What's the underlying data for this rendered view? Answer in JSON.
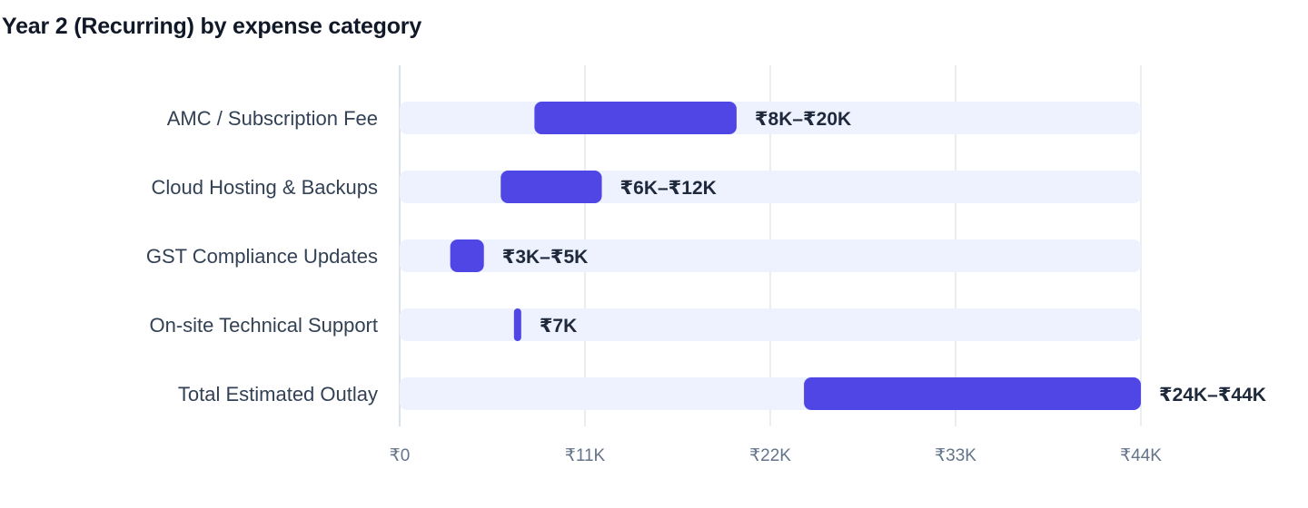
{
  "chart_data": {
    "type": "bar",
    "title": "Year 2 (Recurring) by expense category",
    "xlabel": "",
    "ylabel": "",
    "orientation": "horizontal",
    "bar_style": "floating range",
    "categories": [
      "AMC / Subscription Fee",
      "Cloud Hosting & Backups",
      "GST Compliance Updates",
      "On-site Technical Support",
      "Total Estimated Outlay"
    ],
    "ranges": [
      {
        "low": 8000,
        "high": 20000,
        "label": "₹8K–₹20K"
      },
      {
        "low": 6000,
        "high": 12000,
        "label": "₹6K–₹12K"
      },
      {
        "low": 3000,
        "high": 5000,
        "label": "₹3K–₹5K"
      },
      {
        "low": 7000,
        "high": 7000,
        "label": "₹7K"
      },
      {
        "low": 24000,
        "high": 44000,
        "label": "₹24K–₹44K"
      }
    ],
    "xlim": [
      0,
      44000
    ],
    "ticks": [
      {
        "value": 0,
        "label": "₹0"
      },
      {
        "value": 11000,
        "label": "₹11K"
      },
      {
        "value": 22000,
        "label": "₹22K"
      },
      {
        "value": 33000,
        "label": "₹33K"
      },
      {
        "value": 44000,
        "label": "₹44K"
      }
    ],
    "grid": true,
    "legend": "none",
    "colors": {
      "bar": "#4f46e5",
      "track": "#eef2ff",
      "grid": "#e5e7eb",
      "axis": "#cbd5e1"
    }
  }
}
